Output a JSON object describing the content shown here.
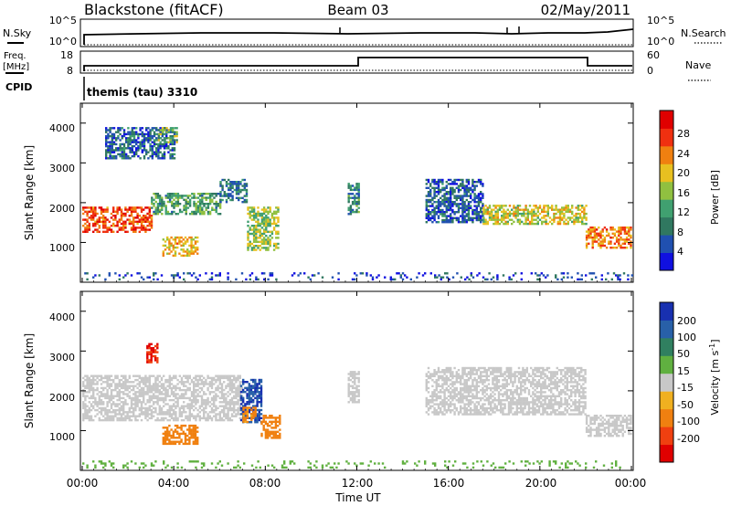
{
  "header": {
    "station": "Blackstone (fitACF)",
    "beam": "Beam 03",
    "date": "02/May/2011"
  },
  "top_panels": {
    "nsky_label": "N.Sky",
    "nsky_ticks": [
      "10^5",
      "10^0"
    ],
    "nsearch_label": "N.Search",
    "nsearch_ticks": [
      "10^5",
      "10^0"
    ],
    "freq_label": "Freq.",
    "freq_unit": "[MHz]",
    "freq_ticks": [
      "18",
      "8"
    ],
    "nave_label": "Nave",
    "nave_ticks": [
      "60",
      "0"
    ],
    "cpid_label": "CPID",
    "cpid_value": "themis (tau) 3310"
  },
  "colorbars": {
    "power": {
      "label": "Power [dB]",
      "ticks": [
        "28",
        "24",
        "20",
        "16",
        "12",
        "8",
        "4"
      ],
      "colors": [
        "#1010e0",
        "#2050b0",
        "#307860",
        "#40a070",
        "#90c040",
        "#e8c020",
        "#f08010",
        "#f03010",
        "#e00000"
      ]
    },
    "velocity": {
      "label_main": "Velocity [m s",
      "label_sup": "-1",
      "label_end": "]",
      "ticks": [
        "200",
        "100",
        "50",
        "15",
        "-15",
        "-50",
        "-100",
        "-200"
      ],
      "colors": [
        "#1830b0",
        "#2860a8",
        "#308060",
        "#60b040",
        "#c8c8c8",
        "#f0b020",
        "#f08010",
        "#f04010",
        "#e00000"
      ]
    }
  },
  "chart_data": [
    {
      "type": "heatmap",
      "title": "Power",
      "ylabel": "Slant Range [km]",
      "yticks": [
        "1000",
        "2000",
        "3000",
        "4000"
      ],
      "ylim": [
        0,
        4500
      ],
      "xlim_hours": [
        0,
        24
      ],
      "colorbar_range_db": [
        0,
        32
      ],
      "regions": [
        {
          "t0": 0.0,
          "t1": 3.0,
          "r0": 1250,
          "r1": 1900,
          "v": 26
        },
        {
          "t0": 3.0,
          "t1": 6.0,
          "r0": 1700,
          "r1": 2250,
          "v": 12
        },
        {
          "t0": 6.0,
          "t1": 7.2,
          "r0": 2000,
          "r1": 2600,
          "v": 9
        },
        {
          "t0": 3.5,
          "t1": 5.0,
          "r0": 650,
          "r1": 1150,
          "v": 20
        },
        {
          "t0": 7.2,
          "t1": 8.6,
          "r0": 800,
          "r1": 1900,
          "v": 16
        },
        {
          "t0": 1.0,
          "t1": 4.0,
          "r0": 3100,
          "r1": 3900,
          "v": 7
        },
        {
          "t0": 3.3,
          "t1": 4.1,
          "r0": 3500,
          "r1": 3900,
          "v": 14
        },
        {
          "t0": 11.6,
          "t1": 12.1,
          "r0": 1700,
          "r1": 2500,
          "v": 10
        },
        {
          "t0": 15.0,
          "t1": 17.5,
          "r0": 1500,
          "r1": 2600,
          "v": 6
        },
        {
          "t0": 17.5,
          "t1": 22.0,
          "r0": 1450,
          "r1": 1950,
          "v": 18
        },
        {
          "t0": 22.0,
          "t1": 24.0,
          "r0": 850,
          "r1": 1400,
          "v": 24
        },
        {
          "t0": 0.0,
          "t1": 24.0,
          "r0": 50,
          "r1": 250,
          "v": 5
        }
      ]
    },
    {
      "type": "heatmap",
      "title": "Velocity",
      "ylabel": "Slant Range [km]",
      "yticks": [
        "1000",
        "2000",
        "3000",
        "4000"
      ],
      "xticks": [
        "00:00",
        "04:00",
        "08:00",
        "12:00",
        "16:00",
        "20:00",
        "00:00"
      ],
      "xlabel": "Time UT",
      "ylim": [
        0,
        4500
      ],
      "xlim_hours": [
        0,
        24
      ],
      "regions": [
        {
          "t0": 0.0,
          "t1": 7.0,
          "r0": 1250,
          "r1": 2400,
          "v": 0
        },
        {
          "t0": 3.5,
          "t1": 5.0,
          "r0": 650,
          "r1": 1150,
          "v": -80
        },
        {
          "t0": 2.8,
          "t1": 3.3,
          "r0": 2700,
          "r1": 3200,
          "v": -200
        },
        {
          "t0": 6.9,
          "t1": 7.8,
          "r0": 1200,
          "r1": 2300,
          "v": 200
        },
        {
          "t0": 7.8,
          "t1": 8.6,
          "r0": 800,
          "r1": 1400,
          "v": -80
        },
        {
          "t0": 7.0,
          "t1": 7.6,
          "r0": 1200,
          "r1": 1600,
          "v": -60
        },
        {
          "t0": 11.6,
          "t1": 12.1,
          "r0": 1700,
          "r1": 2500,
          "v": 0
        },
        {
          "t0": 15.0,
          "t1": 22.0,
          "r0": 1400,
          "r1": 2600,
          "v": 0
        },
        {
          "t0": 22.0,
          "t1": 24.0,
          "r0": 850,
          "r1": 1400,
          "v": 0
        },
        {
          "t0": 0.0,
          "t1": 24.0,
          "r0": 50,
          "r1": 250,
          "v": 30
        }
      ]
    }
  ]
}
